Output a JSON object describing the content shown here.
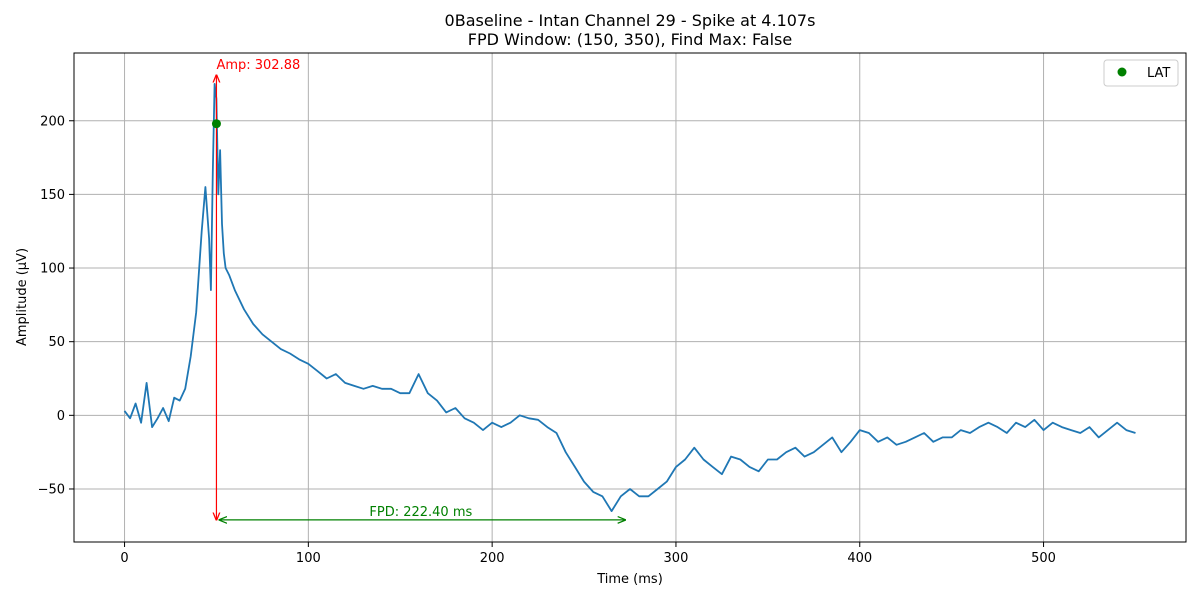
{
  "chart_data": {
    "type": "line",
    "title_line1": "0Baseline - Intan Channel 29 - Spike at 4.107s",
    "title_line2": "FPD Window: (150, 350), Find Max: False",
    "xlabel": "Time (ms)",
    "ylabel": "Amplitude (μV)",
    "xlim": [
      -27.5,
      577.5
    ],
    "ylim": [
      -86,
      246
    ],
    "x_ticks": [
      0,
      100,
      200,
      300,
      400,
      500
    ],
    "x_tick_labels": [
      "0",
      "100",
      "200",
      "300",
      "400",
      "500"
    ],
    "y_ticks": [
      -50,
      0,
      50,
      100,
      150,
      200
    ],
    "y_tick_labels": [
      "−50",
      "0",
      "50",
      "100",
      "150",
      "200"
    ],
    "grid": true,
    "legend_position": "top-right",
    "legend_label": "LAT",
    "colors": {
      "signal": "#1f77b4",
      "amp": "#ff0000",
      "fpd": "#008000",
      "lat": "#008000"
    },
    "series": [
      {
        "x": [
          0,
          3,
          6,
          9,
          12,
          15,
          18,
          21,
          24,
          27,
          30,
          33,
          36,
          39,
          42,
          44,
          46,
          47,
          48,
          49,
          50,
          51,
          52,
          53,
          54,
          55,
          57,
          60,
          65,
          70,
          75,
          80,
          85,
          90,
          95,
          100,
          105,
          110,
          115,
          120,
          125,
          130,
          135,
          140,
          145,
          150,
          155,
          160,
          165,
          170,
          175,
          180,
          185,
          190,
          195,
          200,
          205,
          210,
          215,
          220,
          225,
          230,
          235,
          240,
          245,
          250,
          255,
          260,
          265,
          270,
          275,
          280,
          285,
          290,
          295,
          300,
          305,
          310,
          315,
          320,
          325,
          330,
          335,
          340,
          345,
          350,
          355,
          360,
          365,
          370,
          375,
          380,
          385,
          390,
          395,
          400,
          405,
          410,
          415,
          420,
          425,
          430,
          435,
          440,
          445,
          450,
          455,
          460,
          465,
          470,
          475,
          480,
          485,
          490,
          495,
          500,
          505,
          510,
          515,
          520,
          525,
          530,
          535,
          540,
          545,
          550
        ],
        "y": [
          3,
          -2,
          8,
          -5,
          22,
          -8,
          -2,
          5,
          -4,
          12,
          10,
          18,
          40,
          70,
          125,
          155,
          120,
          85,
          165,
          225,
          215,
          150,
          180,
          130,
          110,
          100,
          95,
          85,
          72,
          62,
          55,
          50,
          45,
          42,
          38,
          35,
          30,
          25,
          28,
          22,
          20,
          18,
          20,
          18,
          18,
          15,
          15,
          28,
          15,
          10,
          2,
          5,
          -2,
          -5,
          -10,
          -5,
          -8,
          -5,
          0,
          -2,
          -3,
          -8,
          -12,
          -25,
          -35,
          -45,
          -52,
          -55,
          -65,
          -55,
          -50,
          -55,
          -55,
          -50,
          -45,
          -35,
          -30,
          -22,
          -30,
          -35,
          -40,
          -28,
          -30,
          -35,
          -38,
          -30,
          -30,
          -25,
          -22,
          -28,
          -25,
          -20,
          -15,
          -25,
          -18,
          -10,
          -12,
          -18,
          -15,
          -20,
          -18,
          -15,
          -12,
          -18,
          -15,
          -15,
          -10,
          -12,
          -8,
          -5,
          -8,
          -12,
          -5,
          -8,
          -3,
          -10,
          -5,
          -8,
          -10,
          -12,
          -8,
          -15,
          -10,
          -5,
          -10,
          -12
        ]
      }
    ],
    "lat_point": {
      "x": 50,
      "y": 198
    },
    "amp_annotation": {
      "x": 50,
      "y_top": 231,
      "y_bottom": -71,
      "label": "Amp: 302.88"
    },
    "fpd_annotation": {
      "x_start": 50,
      "x_end": 272.4,
      "y": -71,
      "label": "FPD: 222.40 ms"
    }
  }
}
